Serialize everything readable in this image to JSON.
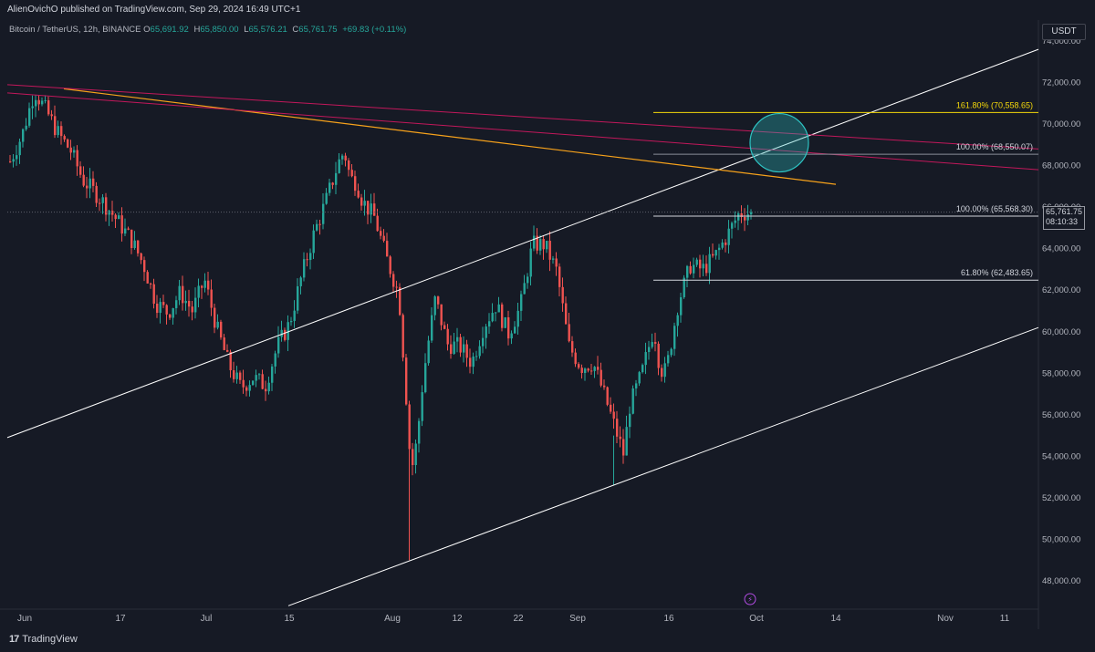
{
  "header": {
    "published_by": "AlienOvichO published on TradingView.com, Sep 29, 2024 16:49 UTC+1",
    "symbol": "Bitcoin / TetherUS, 12h, BINANCE",
    "open": "65,691.92",
    "high": "65,850.00",
    "low": "65,576.21",
    "close": "65,761.75",
    "change": "+69.83 (+0.11%)",
    "labels": {
      "o": "O",
      "h": "H",
      "l": "L",
      "c": "C"
    }
  },
  "price_scale": {
    "currency": "USDT",
    "last_price": "65,761.75",
    "countdown": "08:10:33"
  },
  "footer": {
    "brand": "TradingView",
    "brand_mark": "17"
  },
  "colors": {
    "background": "#161a25",
    "up": "#26a69a",
    "down": "#ef5350",
    "trendline": "#ffffff",
    "resistance_orange": "#f7a21b",
    "resistance_pink": "#c2185b",
    "fib_yellow": "#f5d90a",
    "circle": "#2ec4c4"
  },
  "chart_data": {
    "type": "candlestick",
    "title": "Bitcoin / TetherUS, 12h, BINANCE",
    "ylim": [
      47000,
      75000
    ],
    "y_ticks": [
      "74,000.00",
      "72,000.00",
      "70,000.00",
      "68,000.00",
      "66,000.00",
      "64,000.00",
      "62,000.00",
      "60,000.00",
      "58,000.00",
      "56,000.00",
      "54,000.00",
      "52,000.00",
      "50,000.00",
      "48,000.00"
    ],
    "x_ticks": [
      "Jun",
      "17",
      "Jul",
      "15",
      "Aug",
      "12",
      "22",
      "Sep",
      "16",
      "Oct",
      "14",
      "Nov",
      "11"
    ],
    "price_path": [
      [
        0,
        68200
      ],
      [
        2,
        69500
      ],
      [
        4,
        71600
      ],
      [
        6,
        70600
      ],
      [
        8,
        69500
      ],
      [
        10,
        68700
      ],
      [
        12,
        67300
      ],
      [
        14,
        66700
      ],
      [
        16,
        66000
      ],
      [
        18,
        65200
      ],
      [
        20,
        64400
      ],
      [
        22,
        63200
      ],
      [
        24,
        61400
      ],
      [
        26,
        60900
      ],
      [
        28,
        61900
      ],
      [
        30,
        61000
      ],
      [
        32,
        62500
      ],
      [
        34,
        60200
      ],
      [
        36,
        58400
      ],
      [
        38,
        57300
      ],
      [
        40,
        57800
      ],
      [
        42,
        57400
      ],
      [
        44,
        59300
      ],
      [
        46,
        60400
      ],
      [
        48,
        62700
      ],
      [
        50,
        64700
      ],
      [
        52,
        66300
      ],
      [
        54,
        68100
      ],
      [
        55,
        68700
      ],
      [
        56,
        67400
      ],
      [
        57,
        67200
      ],
      [
        58,
        66300
      ],
      [
        60,
        65500
      ],
      [
        62,
        63500
      ],
      [
        64,
        61800
      ],
      [
        65,
        57800
      ],
      [
        66,
        53200
      ],
      [
        67,
        54800
      ],
      [
        68,
        57800
      ],
      [
        69,
        59800
      ],
      [
        70,
        61600
      ],
      [
        72,
        59400
      ],
      [
        74,
        59300
      ],
      [
        76,
        58500
      ],
      [
        78,
        60300
      ],
      [
        80,
        61300
      ],
      [
        82,
        59900
      ],
      [
        84,
        61200
      ],
      [
        86,
        64200
      ],
      [
        88,
        64200
      ],
      [
        90,
        62900
      ],
      [
        92,
        59300
      ],
      [
        94,
        58300
      ],
      [
        96,
        58500
      ],
      [
        98,
        56800
      ],
      [
        100,
        55000
      ],
      [
        101,
        54100
      ],
      [
        102,
        56400
      ],
      [
        104,
        58000
      ],
      [
        106,
        60200
      ],
      [
        107,
        58200
      ],
      [
        108,
        58100
      ],
      [
        110,
        61400
      ],
      [
        112,
        63200
      ],
      [
        114,
        63000
      ],
      [
        116,
        63600
      ],
      [
        118,
        64600
      ],
      [
        120,
        65700
      ],
      [
        122,
        65750
      ]
    ],
    "trend_lines": [
      {
        "name": "upper-channel",
        "from": {
          "date": "May 30",
          "price": 54900
        },
        "to": {
          "date": "Nov 12",
          "price": 73600
        }
      },
      {
        "name": "lower-channel",
        "from": {
          "date": "Jul 14",
          "price": 46800
        },
        "to": {
          "date": "Nov 12",
          "price": 60200
        }
      },
      {
        "name": "orange-resistance",
        "from": {
          "date": "Jun 7",
          "price": 71700
        },
        "to": {
          "date": "Oct 10",
          "price": 67100
        }
      },
      {
        "name": "pink-resistance-1",
        "from": {
          "date": "May 30",
          "price": 71900
        },
        "to": {
          "date": "Nov 12",
          "price": 68800
        }
      },
      {
        "name": "pink-resistance-2",
        "from": {
          "date": "May 30",
          "price": 71500
        },
        "to": {
          "date": "Nov 12",
          "price": 67800
        }
      }
    ],
    "fib_levels": [
      {
        "label": "161.80% (70,558.65)",
        "price": 70558.65,
        "color": "yellow"
      },
      {
        "label": "100.00% (68,550.07)",
        "price": 68550.07,
        "color": "gray"
      },
      {
        "label": "100.00% (65,568.30)",
        "price": 65568.3,
        "color": "white"
      },
      {
        "label": "61.80% (62,483.65)",
        "price": 62483.65,
        "color": "white"
      }
    ],
    "target_circle": {
      "price": 69100
    }
  }
}
